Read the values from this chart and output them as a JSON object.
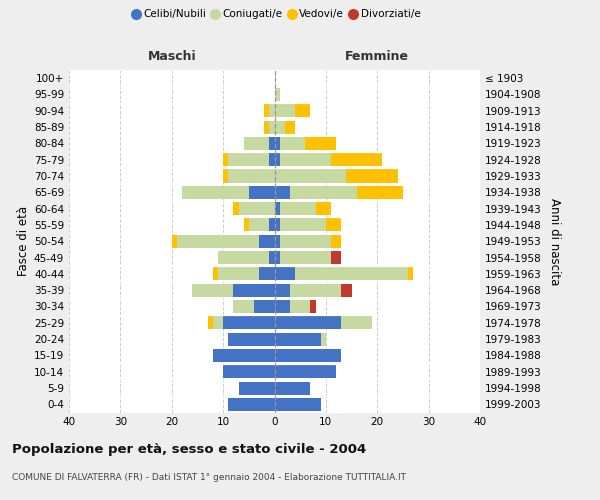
{
  "age_groups": [
    "0-4",
    "5-9",
    "10-14",
    "15-19",
    "20-24",
    "25-29",
    "30-34",
    "35-39",
    "40-44",
    "45-49",
    "50-54",
    "55-59",
    "60-64",
    "65-69",
    "70-74",
    "75-79",
    "80-84",
    "85-89",
    "90-94",
    "95-99",
    "100+"
  ],
  "birth_years": [
    "1999-2003",
    "1994-1998",
    "1989-1993",
    "1984-1988",
    "1979-1983",
    "1974-1978",
    "1969-1973",
    "1964-1968",
    "1959-1963",
    "1954-1958",
    "1949-1953",
    "1944-1948",
    "1939-1943",
    "1934-1938",
    "1929-1933",
    "1924-1928",
    "1919-1923",
    "1914-1918",
    "1909-1913",
    "1904-1908",
    "≤ 1903"
  ],
  "maschi_celibi": [
    9,
    7,
    10,
    12,
    9,
    10,
    4,
    8,
    3,
    1,
    3,
    1,
    0,
    5,
    0,
    1,
    1,
    0,
    0,
    0,
    0
  ],
  "maschi_coniugati": [
    0,
    0,
    0,
    0,
    0,
    2,
    4,
    8,
    8,
    10,
    16,
    4,
    7,
    13,
    9,
    8,
    5,
    1,
    1,
    0,
    0
  ],
  "maschi_vedovi": [
    0,
    0,
    0,
    0,
    0,
    1,
    0,
    0,
    1,
    0,
    1,
    1,
    1,
    0,
    1,
    1,
    0,
    1,
    1,
    0,
    0
  ],
  "maschi_divorziati": [
    0,
    0,
    0,
    0,
    0,
    0,
    0,
    0,
    0,
    0,
    0,
    0,
    0,
    0,
    0,
    0,
    0,
    0,
    0,
    0,
    0
  ],
  "femmine_celibi": [
    9,
    7,
    12,
    13,
    9,
    13,
    3,
    3,
    4,
    1,
    1,
    1,
    1,
    3,
    0,
    1,
    1,
    0,
    0,
    0,
    0
  ],
  "femmine_coniugati": [
    0,
    0,
    0,
    0,
    1,
    6,
    4,
    10,
    22,
    10,
    10,
    9,
    7,
    13,
    14,
    10,
    5,
    2,
    4,
    1,
    0
  ],
  "femmine_vedovi": [
    0,
    0,
    0,
    0,
    0,
    0,
    0,
    0,
    1,
    0,
    2,
    3,
    3,
    9,
    10,
    10,
    6,
    2,
    3,
    0,
    0
  ],
  "femmine_divorziati": [
    0,
    0,
    0,
    0,
    0,
    0,
    1,
    2,
    0,
    2,
    0,
    0,
    0,
    0,
    0,
    0,
    0,
    0,
    0,
    0,
    0
  ],
  "colors": {
    "celibi": "#4472c4",
    "coniugati": "#c5d9a0",
    "vedovi": "#ffc000",
    "divorziati": "#c0392b"
  },
  "legend_labels": [
    "Celibi/Nubili",
    "Coniugati/e",
    "Vedovi/e",
    "Divorziati/e"
  ],
  "title": "Popolazione per età, sesso e stato civile - 2004",
  "subtitle": "COMUNE DI FALVATERRA (FR) - Dati ISTAT 1° gennaio 2004 - Elaborazione TUTTITALIA.IT",
  "ylabel_left": "Fasce di età",
  "ylabel_right": "Anni di nascita",
  "xlabel_maschi": "Maschi",
  "xlabel_femmine": "Femmine",
  "xlim": 40,
  "bg_color": "#eeeeee",
  "plot_bg_color": "#ffffff"
}
